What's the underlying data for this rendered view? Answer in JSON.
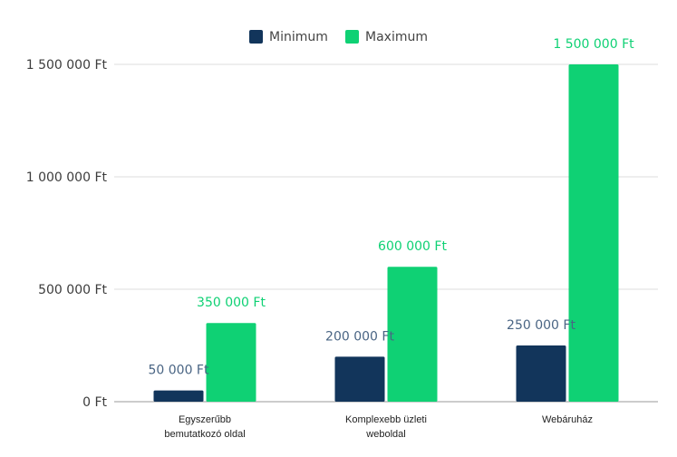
{
  "chart_data": {
    "type": "bar",
    "title": "",
    "xlabel": "",
    "ylabel": "",
    "categories": [
      [
        "Egyszerűbb",
        "bemutatkozó oldal"
      ],
      [
        "Komplexebb üzleti",
        "weboldal"
      ],
      [
        "Webáruház"
      ]
    ],
    "series": [
      {
        "name": "Minimum",
        "color": "#12355b",
        "label_color": "#4a6584",
        "values": [
          50000,
          200000,
          250000
        ],
        "labels": [
          "50 000 Ft",
          "200 000 Ft",
          "250 000 Ft"
        ]
      },
      {
        "name": "Maximum",
        "color": "#0fd174",
        "label_color": "#0fd174",
        "values": [
          350000,
          600000,
          1500000
        ],
        "labels": [
          "350 000 Ft",
          "600 000 Ft",
          "1 500 000 Ft"
        ]
      }
    ],
    "ylim": [
      0,
      1500000
    ],
    "y_ticks": [
      0,
      500000,
      1000000,
      1500000
    ],
    "y_tick_labels": [
      "0 Ft",
      "500 000 Ft",
      "1 000 000 Ft",
      "1 500 000 Ft"
    ],
    "grid": true,
    "legend_position": "top-center"
  }
}
